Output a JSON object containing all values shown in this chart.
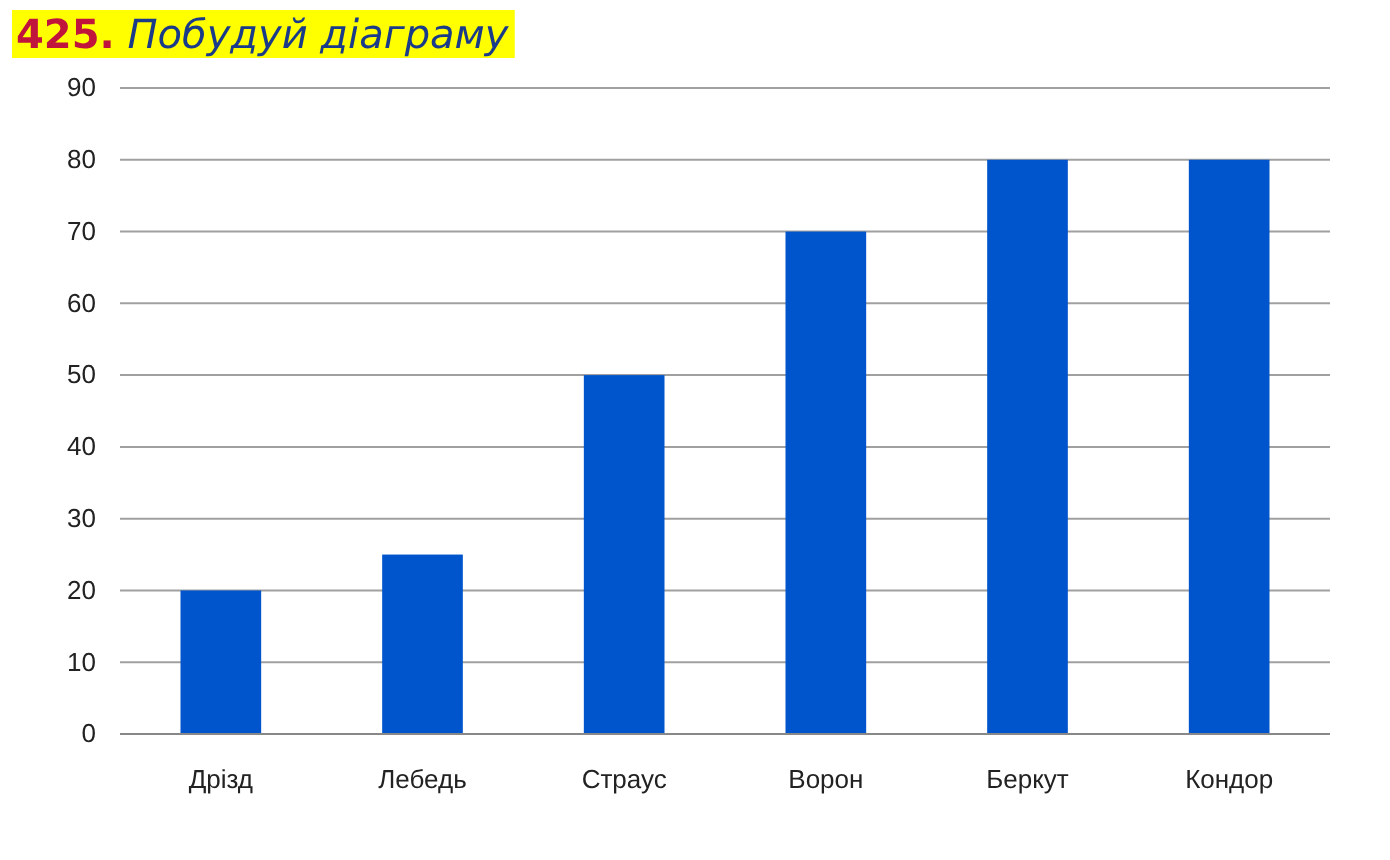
{
  "chart_data": {
    "type": "bar",
    "title": "425. Побудуй діаграму",
    "categories": [
      "Дрізд",
      "Лебедь",
      "Страус",
      "Ворон",
      "Беркут",
      "Кондор"
    ],
    "values": [
      20,
      25,
      50,
      70,
      80,
      80
    ],
    "color": "#0055cc",
    "ylim": [
      0,
      90
    ],
    "yticks": [
      0,
      10,
      20,
      30,
      40,
      50,
      60,
      70,
      80,
      90
    ],
    "grid": "y"
  }
}
